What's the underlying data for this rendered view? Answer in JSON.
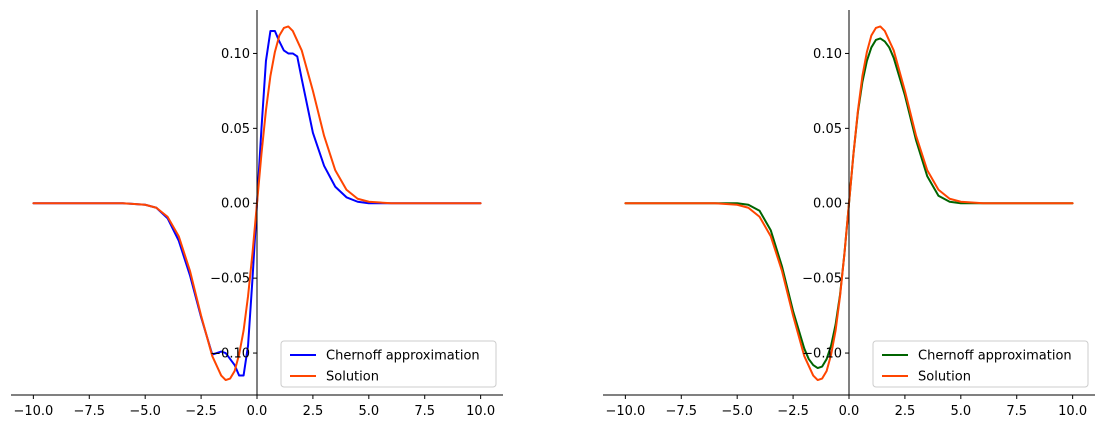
{
  "chart_data": [
    {
      "type": "line",
      "xlim": [
        -11,
        11
      ],
      "ylim": [
        -0.128,
        0.129
      ],
      "xticks": [
        -10,
        -7.5,
        -5,
        -2.5,
        0,
        2.5,
        5,
        7.5,
        10
      ],
      "xtick_labels": [
        "−10.0",
        "−7.5",
        "−5.0",
        "−2.5",
        "0.0",
        "2.5",
        "5.0",
        "7.5",
        "10.0"
      ],
      "yticks": [
        -0.1,
        -0.05,
        0,
        0.05,
        0.1
      ],
      "ytick_labels": [
        "−0.10",
        "−0.05",
        "0.00",
        "0.05",
        "0.10"
      ],
      "legend_position": "bottom-right",
      "series": [
        {
          "name": "Chernoff approximation",
          "color": "#0000ff",
          "x": [
            -10,
            -6,
            -5,
            -4.5,
            -4,
            -3.5,
            -3,
            -2.5,
            -2,
            -1.8,
            -1.6,
            -1.4,
            -1.2,
            -1,
            -0.8,
            -0.6,
            -0.4,
            -0.2,
            0,
            0.2,
            0.4,
            0.6,
            0.8,
            1,
            1.2,
            1.4,
            1.6,
            1.8,
            2,
            2.5,
            3,
            3.5,
            4,
            4.5,
            5,
            6,
            10
          ],
          "y": [
            0,
            0,
            -0.001,
            -0.003,
            -0.01,
            -0.025,
            -0.048,
            -0.076,
            -0.101,
            -0.1,
            -0.099,
            -0.1,
            -0.104,
            -0.108,
            -0.115,
            -0.115,
            -0.095,
            -0.05,
            0,
            0.05,
            0.095,
            0.115,
            0.115,
            0.108,
            0.102,
            0.1,
            0.1,
            0.098,
            0.083,
            0.047,
            0.025,
            0.011,
            0.004,
            0.001,
            0,
            0,
            0
          ]
        },
        {
          "name": "Solution",
          "color": "#ff4500",
          "x": [
            -10,
            -6,
            -5,
            -4.5,
            -4,
            -3.5,
            -3,
            -2.5,
            -2,
            -1.6,
            -1.4,
            -1.2,
            -1,
            -0.8,
            -0.6,
            -0.4,
            -0.2,
            0,
            0.2,
            0.4,
            0.6,
            0.8,
            1,
            1.2,
            1.4,
            1.6,
            2,
            2.5,
            3,
            3.5,
            4,
            4.5,
            5,
            6,
            10
          ],
          "y": [
            0,
            0,
            -0.001,
            -0.003,
            -0.009,
            -0.022,
            -0.045,
            -0.075,
            -0.102,
            -0.115,
            -0.118,
            -0.117,
            -0.112,
            -0.101,
            -0.085,
            -0.062,
            -0.033,
            0,
            0.033,
            0.062,
            0.085,
            0.101,
            0.112,
            0.117,
            0.118,
            0.115,
            0.102,
            0.075,
            0.045,
            0.022,
            0.009,
            0.003,
            0.001,
            0,
            0
          ]
        }
      ]
    },
    {
      "type": "line",
      "xlim": [
        -11,
        11
      ],
      "ylim": [
        -0.128,
        0.129
      ],
      "xticks": [
        -10,
        -7.5,
        -5,
        -2.5,
        0,
        2.5,
        5,
        7.5,
        10
      ],
      "xtick_labels": [
        "−10.0",
        "−7.5",
        "−5.0",
        "−2.5",
        "0.0",
        "2.5",
        "5.0",
        "7.5",
        "10.0"
      ],
      "yticks": [
        -0.1,
        -0.05,
        0,
        0.05,
        0.1
      ],
      "ytick_labels": [
        "−0.10",
        "−0.05",
        "0.00",
        "0.05",
        "0.10"
      ],
      "legend_position": "bottom-right",
      "series": [
        {
          "name": "Chernoff approximation",
          "color": "#006400",
          "x": [
            -10,
            -5,
            -4.5,
            -4,
            -3.5,
            -3,
            -2.5,
            -2,
            -1.8,
            -1.6,
            -1.4,
            -1.2,
            -1,
            -0.8,
            -0.6,
            -0.4,
            -0.2,
            0,
            0.2,
            0.4,
            0.6,
            0.8,
            1,
            1.2,
            1.4,
            1.6,
            1.8,
            2,
            2.5,
            3,
            3.5,
            4,
            4.5,
            5,
            10
          ],
          "y": [
            0,
            0,
            -0.001,
            -0.005,
            -0.018,
            -0.042,
            -0.072,
            -0.097,
            -0.104,
            -0.108,
            -0.11,
            -0.109,
            -0.104,
            -0.095,
            -0.081,
            -0.061,
            -0.033,
            0,
            0.033,
            0.061,
            0.081,
            0.095,
            0.104,
            0.109,
            0.11,
            0.108,
            0.104,
            0.097,
            0.072,
            0.042,
            0.018,
            0.005,
            0.001,
            0,
            0
          ]
        },
        {
          "name": "Solution",
          "color": "#ff4500",
          "x": [
            -10,
            -6,
            -5,
            -4.5,
            -4,
            -3.5,
            -3,
            -2.5,
            -2,
            -1.6,
            -1.4,
            -1.2,
            -1,
            -0.8,
            -0.6,
            -0.4,
            -0.2,
            0,
            0.2,
            0.4,
            0.6,
            0.8,
            1,
            1.2,
            1.4,
            1.6,
            2,
            2.5,
            3,
            3.5,
            4,
            4.5,
            5,
            6,
            10
          ],
          "y": [
            0,
            0,
            -0.001,
            -0.003,
            -0.009,
            -0.022,
            -0.045,
            -0.075,
            -0.102,
            -0.115,
            -0.118,
            -0.117,
            -0.112,
            -0.101,
            -0.085,
            -0.062,
            -0.033,
            0,
            0.033,
            0.062,
            0.085,
            0.101,
            0.112,
            0.117,
            0.118,
            0.115,
            0.102,
            0.075,
            0.045,
            0.022,
            0.009,
            0.003,
            0.001,
            0,
            0
          ]
        }
      ]
    }
  ]
}
